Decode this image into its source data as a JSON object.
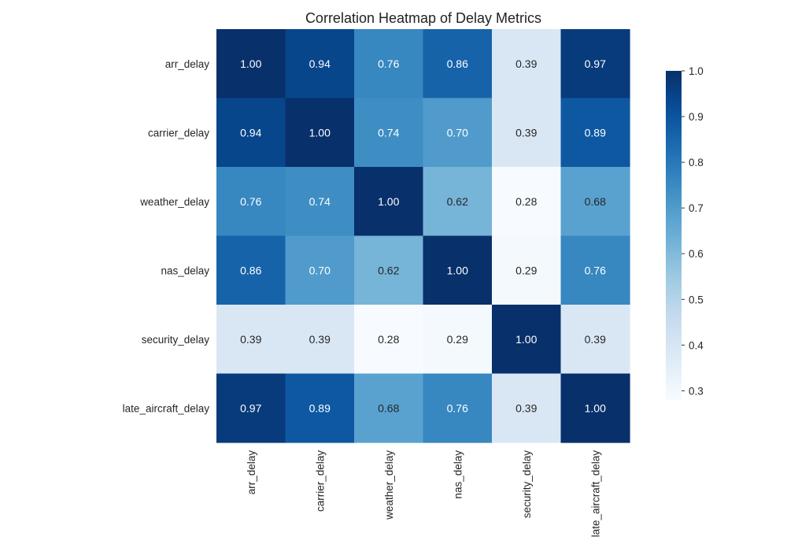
{
  "chart_data": {
    "type": "heatmap",
    "title": "Correlation Heatmap of Delay Metrics",
    "xlabel": "",
    "ylabel": "",
    "rows": [
      "arr_delay",
      "carrier_delay",
      "weather_delay",
      "nas_delay",
      "security_delay",
      "late_aircraft_delay"
    ],
    "columns": [
      "arr_delay",
      "carrier_delay",
      "weather_delay",
      "nas_delay",
      "security_delay",
      "late_aircraft_delay"
    ],
    "values": [
      [
        1.0,
        0.94,
        0.76,
        0.86,
        0.39,
        0.97
      ],
      [
        0.94,
        1.0,
        0.74,
        0.7,
        0.39,
        0.89
      ],
      [
        0.76,
        0.74,
        1.0,
        0.62,
        0.28,
        0.68
      ],
      [
        0.86,
        0.7,
        0.62,
        1.0,
        0.29,
        0.76
      ],
      [
        0.39,
        0.39,
        0.28,
        0.29,
        1.0,
        0.39
      ],
      [
        0.97,
        0.89,
        0.68,
        0.76,
        0.39,
        1.0
      ]
    ],
    "value_format": "0.00",
    "colormap": "Blues",
    "color_range": [
      0.28,
      1.0
    ],
    "colorbar": {
      "ticks": [
        1.0,
        0.9,
        0.8,
        0.7,
        0.6,
        0.5,
        0.4,
        0.3
      ],
      "tick_labels": [
        "1.0",
        "0.9",
        "0.8",
        "0.7",
        "0.6",
        "0.5",
        "0.4",
        "0.3"
      ],
      "placement": "right"
    },
    "grid": false
  }
}
